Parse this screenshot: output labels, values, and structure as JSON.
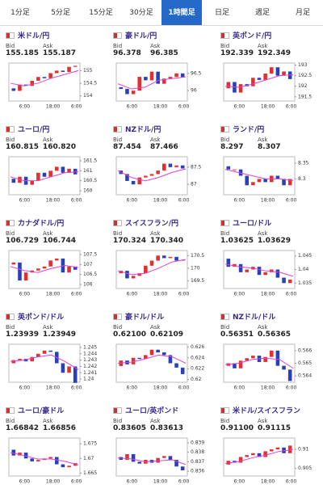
{
  "tabs": [
    "1分足",
    "5分足",
    "15分足",
    "30分足",
    "1時間足",
    "日足",
    "週足",
    "月足"
  ],
  "active_tab": 4,
  "labels": {
    "bid": "Bid",
    "ask": "Ask"
  },
  "cards": [
    {
      "title": "米ドル/円",
      "bid": "155.185",
      "ask": "155.187",
      "chart": {
        "type": "candlestick",
        "ylim": [
          153.8,
          155.3
        ],
        "yticks": [
          155,
          154.5,
          154
        ],
        "xticks": [
          "6:00",
          "18:00",
          "6:00"
        ],
        "close": [
          154.3,
          154.2,
          154.45,
          154.4,
          154.6,
          154.75,
          154.7,
          154.9,
          155.0,
          154.95,
          155.15,
          155.19
        ],
        "ma": [
          154.5,
          154.4,
          154.5,
          154.7,
          154.85,
          155.0
        ]
      }
    },
    {
      "title": "豪ドル/円",
      "bid": "96.378",
      "ask": "96.385",
      "chart": {
        "type": "candlestick",
        "ylim": [
          95.7,
          96.8
        ],
        "yticks": [
          96.5,
          96
        ],
        "xticks": [
          "6:00",
          "18:00",
          "6:00"
        ],
        "close": [
          96.1,
          96.05,
          95.9,
          96.0,
          96.4,
          96.3,
          96.55,
          96.2,
          96.35,
          96.4,
          96.5,
          96.38
        ],
        "ma": [
          96.2,
          96.05,
          96.1,
          96.3,
          96.35,
          96.4
        ]
      }
    },
    {
      "title": "英ポンド/円",
      "bid": "192.339",
      "ask": "192.349",
      "chart": {
        "type": "candlestick",
        "ylim": [
          191.3,
          193.1
        ],
        "yticks": [
          193,
          192.5,
          192,
          191.5
        ],
        "xticks": [
          "6:00",
          "18:00",
          "6:00"
        ],
        "close": [
          191.9,
          192.2,
          191.7,
          192.1,
          192.0,
          192.4,
          192.3,
          192.6,
          192.9,
          192.5,
          192.7,
          192.34
        ],
        "ma": [
          192.0,
          191.95,
          192.1,
          192.3,
          192.5,
          192.55
        ]
      }
    },
    {
      "title": "ユーロ/円",
      "bid": "160.815",
      "ask": "160.820",
      "chart": {
        "type": "candlestick",
        "ylim": [
          159.8,
          161.7
        ],
        "yticks": [
          161.5,
          161,
          160.5,
          160
        ],
        "xticks": [
          "6:00",
          "18:00",
          "6:00"
        ],
        "close": [
          160.6,
          160.4,
          160.7,
          160.3,
          160.5,
          160.9,
          160.7,
          161.0,
          161.2,
          160.9,
          161.1,
          160.82
        ],
        "ma": [
          160.7,
          160.5,
          160.5,
          160.7,
          160.9,
          160.95
        ]
      }
    },
    {
      "title": "NZドル/円",
      "bid": "87.454",
      "ask": "87.466",
      "chart": {
        "type": "candlestick",
        "ylim": [
          86.7,
          87.8
        ],
        "yticks": [
          87.5,
          87
        ],
        "xticks": [
          "6:00",
          "18:00",
          "6:00"
        ],
        "close": [
          87.4,
          87.3,
          87.1,
          87.0,
          87.2,
          87.25,
          87.3,
          87.4,
          87.6,
          87.5,
          87.55,
          87.46
        ],
        "ma": [
          87.4,
          87.2,
          87.1,
          87.2,
          87.35,
          87.45
        ]
      }
    },
    {
      "title": "ランド/円",
      "bid": "8.297",
      "ask": "8.307",
      "chart": {
        "type": "candlestick",
        "ylim": [
          8.25,
          8.37
        ],
        "yticks": [
          8.35,
          8.3
        ],
        "xticks": [
          "6:00",
          "18:00",
          "6:00"
        ],
        "close": [
          8.34,
          8.33,
          8.33,
          8.31,
          8.28,
          8.29,
          8.3,
          8.29,
          8.31,
          8.3,
          8.28,
          8.3
        ],
        "ma": [
          8.33,
          8.32,
          8.31,
          8.3,
          8.3,
          8.295
        ]
      }
    },
    {
      "title": "カナダドル/円",
      "bid": "106.729",
      "ask": "106.744",
      "chart": {
        "type": "candlestick",
        "ylim": [
          105.8,
          107.7
        ],
        "yticks": [
          107.5,
          107,
          106.5,
          106
        ],
        "xticks": [
          "6:00",
          "18:00",
          "6:00"
        ],
        "close": [
          107.0,
          107.1,
          106.2,
          106.6,
          106.7,
          106.8,
          106.9,
          107.2,
          107.3,
          106.6,
          106.9,
          106.74
        ],
        "ma": [
          106.9,
          106.7,
          106.6,
          106.8,
          106.95,
          106.85
        ]
      }
    },
    {
      "title": "スイスフラン/円",
      "bid": "170.324",
      "ask": "170.340",
      "chart": {
        "type": "candlestick",
        "ylim": [
          169.2,
          170.7
        ],
        "yticks": [
          170.5,
          170,
          169.5
        ],
        "xticks": [
          "6:00",
          "18:00",
          "6:00"
        ],
        "close": [
          169.8,
          169.9,
          169.6,
          169.7,
          169.8,
          170.1,
          170.3,
          170.5,
          170.4,
          170.45,
          170.3,
          170.33
        ],
        "ma": [
          169.9,
          169.75,
          169.8,
          170.0,
          170.25,
          170.35
        ]
      }
    },
    {
      "title": "ユーロ/ドル",
      "bid": "1.03625",
      "ask": "1.03629",
      "chart": {
        "type": "candlestick",
        "ylim": [
          1.033,
          1.047
        ],
        "yticks": [
          1.045,
          1.04,
          1.035
        ],
        "xticks": [
          "6:00",
          "18:00",
          "6:00"
        ],
        "close": [
          1.044,
          1.041,
          1.042,
          1.039,
          1.04,
          1.041,
          1.038,
          1.039,
          1.04,
          1.037,
          1.035,
          1.0363
        ],
        "ma": [
          1.042,
          1.041,
          1.0405,
          1.0395,
          1.039,
          1.0375
        ]
      }
    },
    {
      "title": "英ポンド/ドル",
      "bid": "1.23939",
      "ask": "1.23949",
      "chart": {
        "type": "candlestick",
        "ylim": [
          1.2395,
          1.2455
        ],
        "yticks": [
          1.245,
          1.244,
          1.243,
          1.242,
          1.241,
          1.24
        ],
        "xticks": [
          "6:00",
          "18:00",
          "6:00"
        ],
        "close": [
          1.2425,
          1.243,
          1.2432,
          1.2428,
          1.2435,
          1.244,
          1.2445,
          1.2443,
          1.2425,
          1.241,
          1.242,
          1.2394
        ],
        "ma": [
          1.2428,
          1.243,
          1.2435,
          1.2438,
          1.2428,
          1.2415
        ]
      }
    },
    {
      "title": "豪ドル/ドル",
      "bid": "0.62100",
      "ask": "0.62109",
      "chart": {
        "type": "candlestick",
        "ylim": [
          0.6195,
          0.6265
        ],
        "yticks": [
          0.626,
          0.624,
          0.622,
          0.62
        ],
        "xticks": [
          "6:00",
          "18:00",
          "6:00"
        ],
        "close": [
          0.6225,
          0.6235,
          0.6228,
          0.624,
          0.6238,
          0.6245,
          0.6255,
          0.625,
          0.6245,
          0.623,
          0.6222,
          0.621
        ],
        "ma": [
          0.623,
          0.6232,
          0.6238,
          0.6245,
          0.6242,
          0.623
        ]
      }
    },
    {
      "title": "NZドル/ドル",
      "bid": "0.56351",
      "ask": "0.56365",
      "chart": {
        "type": "candlestick",
        "ylim": [
          0.5635,
          0.5665
        ],
        "yticks": [
          0.566,
          0.565,
          0.564
        ],
        "xticks": [
          "6:00",
          "18:00",
          "6:00"
        ],
        "close": [
          0.5648,
          0.565,
          0.5646,
          0.5652,
          0.5654,
          0.5656,
          0.5651,
          0.5655,
          0.566,
          0.5648,
          0.5645,
          0.5636
        ],
        "ma": [
          0.5649,
          0.565,
          0.5653,
          0.5654,
          0.5653,
          0.5646
        ]
      }
    },
    {
      "title": "ユーロ/豪ドル",
      "bid": "1.66842",
      "ask": "1.66856",
      "chart": {
        "type": "candlestick",
        "ylim": [
          1.664,
          1.677
        ],
        "yticks": [
          1.675,
          1.67,
          1.665
        ],
        "xticks": [
          "6:00",
          "18:00",
          "6:00"
        ],
        "close": [
          1.673,
          1.671,
          1.672,
          1.67,
          1.669,
          1.6695,
          1.67,
          1.6705,
          1.668,
          1.667,
          1.6675,
          1.6684
        ],
        "ma": [
          1.672,
          1.671,
          1.6698,
          1.6698,
          1.669,
          1.6678
        ]
      }
    },
    {
      "title": "ユーロ/英ポンド",
      "bid": "0.83605",
      "ask": "0.83613",
      "chart": {
        "type": "candlestick",
        "ylim": [
          0.8355,
          0.8395
        ],
        "yticks": [
          0.839,
          0.838,
          0.837,
          0.836
        ],
        "xticks": [
          "6:00",
          "18:00",
          "6:00"
        ],
        "close": [
          0.8375,
          0.8372,
          0.8378,
          0.837,
          0.8368,
          0.8372,
          0.8369,
          0.8374,
          0.8376,
          0.8372,
          0.8365,
          0.8361
        ],
        "ma": [
          0.8374,
          0.8373,
          0.837,
          0.8371,
          0.8372,
          0.8367
        ]
      }
    },
    {
      "title": "米ドル/スイスフラン",
      "bid": "0.91100",
      "ask": "0.91115",
      "chart": {
        "type": "candlestick",
        "ylim": [
          0.903,
          0.913
        ],
        "yticks": [
          0.91,
          0.905
        ],
        "xticks": [
          "6:00",
          "18:00",
          "6:00"
        ],
        "close": [
          0.906,
          0.907,
          0.9065,
          0.908,
          0.9085,
          0.909,
          0.908,
          0.9095,
          0.91,
          0.9105,
          0.909,
          0.911
        ],
        "ma": [
          0.9063,
          0.9068,
          0.9078,
          0.9085,
          0.9095,
          0.91
        ]
      }
    }
  ]
}
